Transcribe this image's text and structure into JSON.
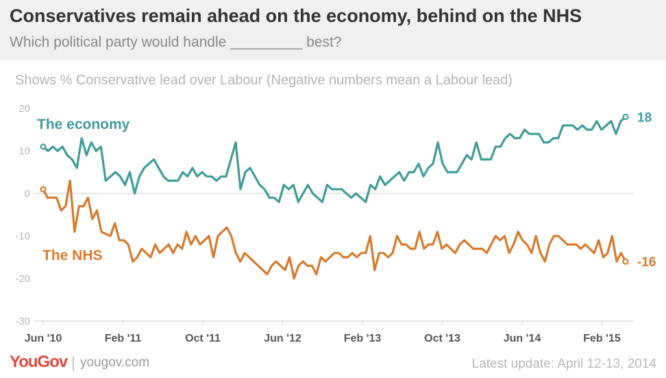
{
  "header": {
    "title": "Conservatives remain ahead on the economy, behind on the NHS",
    "subtitle": "Which political party would handle _________ best?"
  },
  "note": "Shows % Conservative lead over Labour (Negative numbers mean a Labour lead)",
  "footer": {
    "logo": "YouGov",
    "separator": "|",
    "site": "yougov.com",
    "update": "Latest update: April 12-13, 2014"
  },
  "chart_data": {
    "type": "line",
    "title": "",
    "xlabel": "",
    "ylabel": "",
    "ylim": [
      -30,
      20
    ],
    "yticks": [
      20,
      10,
      0,
      -10,
      -20,
      -30
    ],
    "grid": false,
    "x_range": [
      "Jun '10",
      "Apr '15"
    ],
    "x_tick_labels": [
      "Jun '10",
      "Feb '11",
      "Oct '11",
      "Jun '12",
      "Feb '13",
      "Oct '13",
      "Jun '14",
      "Feb '15"
    ],
    "series": [
      {
        "name": "The economy",
        "color": "#3f9c98",
        "end_label": "18",
        "values": [
          11,
          10,
          11,
          10,
          11,
          9,
          8,
          6,
          13,
          9,
          12,
          10,
          11,
          3,
          4,
          5,
          4,
          2,
          5,
          0,
          4,
          6,
          7,
          8,
          6,
          4,
          3,
          3,
          3,
          5,
          4,
          6,
          4,
          5,
          4,
          4,
          3,
          4,
          4,
          8,
          12,
          1,
          5,
          6,
          4,
          2,
          1,
          -1,
          -1,
          -2,
          2,
          1,
          2,
          -2,
          0,
          2,
          0,
          -1,
          -2,
          2,
          1,
          1,
          1,
          0,
          -1,
          0,
          -1,
          -2,
          2,
          1,
          4,
          2,
          3,
          4,
          5,
          3,
          5,
          5,
          7,
          4,
          6,
          7,
          12,
          7,
          5,
          5,
          5,
          7,
          9,
          8,
          12,
          8,
          8,
          8,
          11,
          11,
          13,
          14,
          13,
          13,
          15,
          14,
          14,
          14,
          12,
          12,
          13,
          13,
          16,
          16,
          16,
          15,
          16,
          15,
          15,
          17,
          15,
          16,
          17,
          14,
          17,
          18
        ]
      },
      {
        "name": "The NHS",
        "color": "#d67a2c",
        "end_label": "-16",
        "values": [
          1,
          -1,
          -1,
          -1,
          -4,
          -3,
          3,
          -9,
          -3,
          -3,
          -1,
          -6,
          -4,
          -9,
          -9.5,
          -10,
          -7,
          -11,
          -11,
          -12,
          -16,
          -15,
          -13,
          -14,
          -15,
          -12,
          -14,
          -13,
          -12,
          -14,
          -12,
          -13,
          -9,
          -12,
          -10,
          -12,
          -11,
          -10,
          -15,
          -10,
          -9,
          -8,
          -10,
          -14,
          -16,
          -14,
          -15,
          -16,
          -17,
          -18,
          -19,
          -17,
          -16,
          -17,
          -18,
          -15,
          -20,
          -17,
          -16,
          -17,
          -17,
          -19,
          -15,
          -16,
          -15,
          -14,
          -14,
          -15,
          -15,
          -14,
          -15,
          -14,
          -14,
          -10,
          -18,
          -14,
          -14,
          -15,
          -14,
          -10,
          -12,
          -12,
          -13,
          -13,
          -9,
          -13,
          -12,
          -12,
          -9,
          -13,
          -12,
          -13,
          -14,
          -12,
          -11,
          -12,
          -13,
          -13,
          -13,
          -14,
          -12,
          -10,
          -11,
          -10,
          -14,
          -12,
          -9,
          -11,
          -12,
          -14,
          -10,
          -14,
          -16,
          -12,
          -10,
          -10,
          -11,
          -12,
          -12,
          -12,
          -13,
          -12,
          -13,
          -14,
          -11,
          -15,
          -14,
          -10,
          -16,
          -14,
          -16
        ]
      }
    ]
  }
}
